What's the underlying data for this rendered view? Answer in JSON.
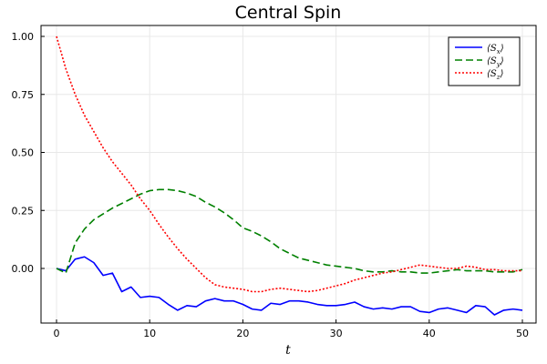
{
  "chart_data": {
    "type": "line",
    "title": "Central Spin",
    "xlabel": "t",
    "ylabel": "",
    "xlim": [
      0,
      50
    ],
    "ylim": [
      -0.2,
      1.0
    ],
    "xticks": [
      0,
      10,
      20,
      30,
      40,
      50
    ],
    "yticks": [
      0.0,
      0.25,
      0.5,
      0.75,
      1.0
    ],
    "xtick_labels": [
      "0",
      "10",
      "20",
      "30",
      "40",
      "50"
    ],
    "ytick_labels": [
      "0.00",
      "0.25",
      "0.50",
      "0.75",
      "1.00"
    ],
    "grid": true,
    "legend_position": "top-right",
    "series": [
      {
        "name": "⟨S",
        "name_sub": "x",
        "name_close": "⟩",
        "color": "#0000ff",
        "style": "solid",
        "x": [
          0,
          1,
          2,
          3,
          4,
          5,
          6,
          7,
          8,
          9,
          10,
          11,
          12,
          13,
          14,
          15,
          16,
          17,
          18,
          19,
          20,
          21,
          22,
          23,
          24,
          25,
          26,
          27,
          28,
          29,
          30,
          31,
          32,
          33,
          34,
          35,
          36,
          37,
          38,
          39,
          40,
          41,
          42,
          43,
          44,
          45,
          46,
          47,
          48,
          49,
          50
        ],
        "values": [
          0.0,
          -0.01,
          0.04,
          0.05,
          0.025,
          -0.03,
          -0.02,
          -0.1,
          -0.08,
          -0.125,
          -0.12,
          -0.125,
          -0.155,
          -0.18,
          -0.16,
          -0.165,
          -0.14,
          -0.13,
          -0.14,
          -0.14,
          -0.155,
          -0.175,
          -0.18,
          -0.15,
          -0.155,
          -0.14,
          -0.14,
          -0.145,
          -0.155,
          -0.16,
          -0.16,
          -0.155,
          -0.145,
          -0.165,
          -0.175,
          -0.17,
          -0.175,
          -0.165,
          -0.165,
          -0.185,
          -0.19,
          -0.175,
          -0.17,
          -0.18,
          -0.19,
          -0.16,
          -0.165,
          -0.2,
          -0.18,
          -0.175,
          -0.18
        ]
      },
      {
        "name": "⟨S",
        "name_sub": "y",
        "name_close": "⟩",
        "color": "#008000",
        "style": "dashed",
        "x": [
          0,
          1,
          2,
          3,
          4,
          5,
          6,
          7,
          8,
          9,
          10,
          11,
          12,
          13,
          14,
          15,
          16,
          17,
          18,
          19,
          20,
          21,
          22,
          23,
          24,
          25,
          26,
          27,
          28,
          29,
          30,
          31,
          32,
          33,
          34,
          35,
          36,
          37,
          38,
          39,
          40,
          41,
          42,
          43,
          44,
          45,
          46,
          47,
          48,
          49,
          50
        ],
        "values": [
          0.0,
          -0.02,
          0.11,
          0.17,
          0.21,
          0.235,
          0.26,
          0.28,
          0.3,
          0.32,
          0.335,
          0.34,
          0.34,
          0.335,
          0.325,
          0.31,
          0.285,
          0.265,
          0.24,
          0.21,
          0.175,
          0.16,
          0.14,
          0.115,
          0.085,
          0.065,
          0.045,
          0.035,
          0.025,
          0.015,
          0.01,
          0.005,
          0.0,
          -0.01,
          -0.015,
          -0.015,
          -0.01,
          -0.015,
          -0.015,
          -0.02,
          -0.02,
          -0.015,
          -0.01,
          -0.005,
          -0.01,
          -0.01,
          -0.01,
          -0.015,
          -0.015,
          -0.015,
          -0.005
        ]
      },
      {
        "name": "⟨S",
        "name_sub": "z",
        "name_close": "⟩",
        "color": "#ff0000",
        "style": "dotted",
        "x": [
          0,
          1,
          2,
          3,
          4,
          5,
          6,
          7,
          8,
          9,
          10,
          11,
          12,
          13,
          14,
          15,
          16,
          17,
          18,
          19,
          20,
          21,
          22,
          23,
          24,
          25,
          26,
          27,
          28,
          29,
          30,
          31,
          32,
          33,
          34,
          35,
          36,
          37,
          38,
          39,
          40,
          41,
          42,
          43,
          44,
          45,
          46,
          47,
          48,
          49,
          50
        ],
        "values": [
          1.0,
          0.86,
          0.75,
          0.66,
          0.59,
          0.52,
          0.46,
          0.41,
          0.36,
          0.3,
          0.25,
          0.19,
          0.135,
          0.085,
          0.04,
          0.0,
          -0.04,
          -0.07,
          -0.08,
          -0.085,
          -0.09,
          -0.1,
          -0.1,
          -0.09,
          -0.085,
          -0.09,
          -0.095,
          -0.1,
          -0.095,
          -0.085,
          -0.075,
          -0.065,
          -0.05,
          -0.04,
          -0.03,
          -0.02,
          -0.015,
          -0.005,
          0.005,
          0.015,
          0.01,
          0.005,
          0.0,
          0.0,
          0.01,
          0.005,
          -0.005,
          -0.005,
          -0.01,
          -0.01,
          -0.01
        ]
      }
    ]
  }
}
